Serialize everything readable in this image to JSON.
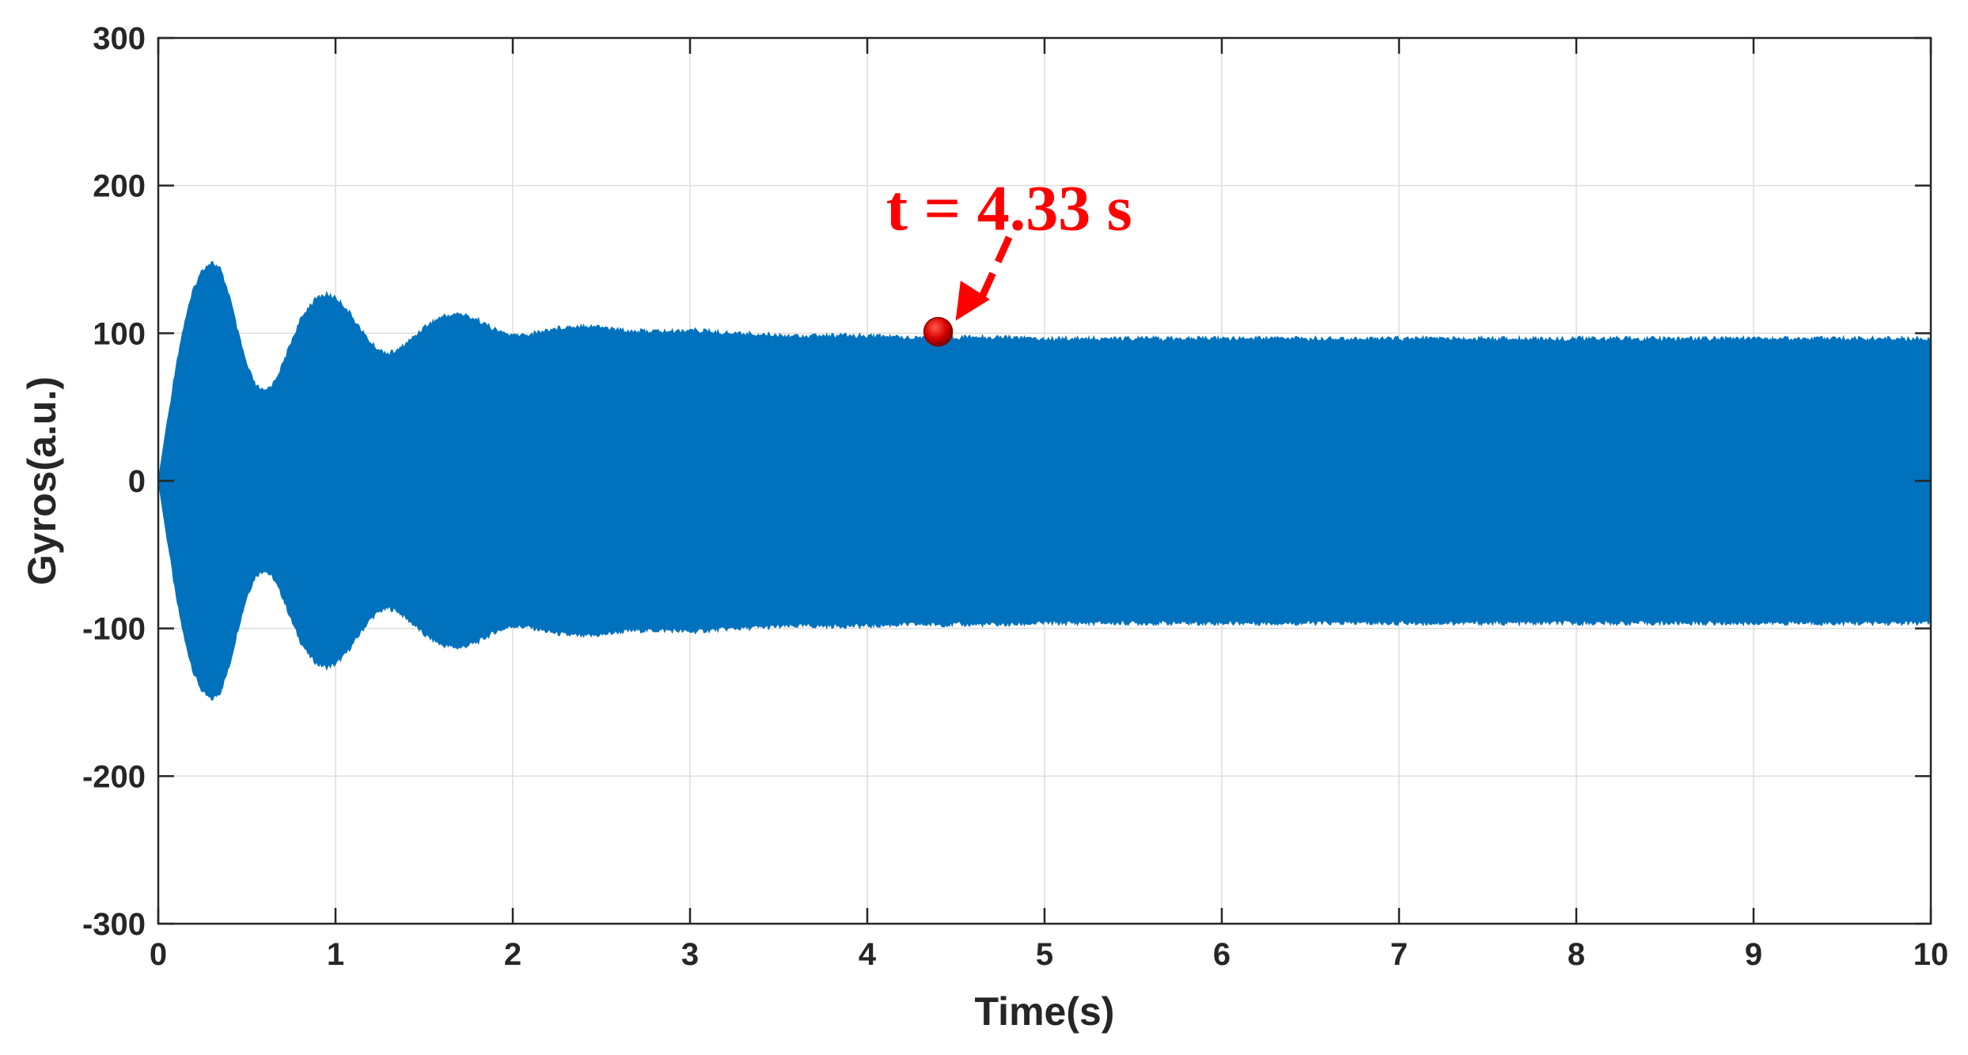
{
  "chart_data": {
    "type": "area",
    "title": "",
    "xlabel": "Time(s)",
    "ylabel": "Gyros(a.u.)",
    "xlim": [
      0,
      10
    ],
    "ylim": [
      -300,
      300
    ],
    "xticks": [
      0,
      1,
      2,
      3,
      4,
      5,
      6,
      7,
      8,
      9,
      10
    ],
    "yticks": [
      -300,
      -200,
      -100,
      0,
      100,
      200,
      300
    ],
    "grid": true,
    "legend": "none",
    "series_color": "#0072BD",
    "annotation_color": "#FF0000",
    "series": [
      {
        "envelope_description": "symmetric oscillation envelope (upper = +amplitude, lower = -amplitude)",
        "x": [
          0,
          0.05,
          0.1,
          0.15,
          0.2,
          0.25,
          0.3,
          0.35,
          0.4,
          0.45,
          0.5,
          0.55,
          0.6,
          0.65,
          0.7,
          0.75,
          0.8,
          0.85,
          0.9,
          0.95,
          1.0,
          1.05,
          1.1,
          1.15,
          1.2,
          1.25,
          1.3,
          1.35,
          1.4,
          1.45,
          1.5,
          1.6,
          1.7,
          1.8,
          1.9,
          2.0,
          2.1,
          2.2,
          2.3,
          2.4,
          2.5,
          2.6,
          2.7,
          2.8,
          2.9,
          3.0,
          3.1,
          3.2,
          3.4,
          3.6,
          3.8,
          4.0,
          4.2,
          4.4,
          4.6,
          4.8,
          5.0,
          5.5,
          6.0,
          6.5,
          7.0,
          7.5,
          8.0,
          8.5,
          9.0,
          9.5,
          10.0
        ],
        "amplitude": [
          0,
          40,
          80,
          110,
          132,
          145,
          150,
          145,
          128,
          102,
          80,
          66,
          62,
          68,
          80,
          96,
          110,
          120,
          126,
          128,
          126,
          120,
          112,
          103,
          95,
          90,
          88,
          90,
          95,
          100,
          106,
          113,
          115,
          111,
          104,
          100,
          101,
          104,
          106,
          107,
          106,
          104,
          103,
          103,
          103,
          104,
          103,
          102,
          101,
          100,
          100,
          100,
          99,
          99,
          99,
          99,
          98,
          98,
          98,
          98,
          98,
          98,
          98,
          98,
          98,
          98,
          98
        ]
      }
    ],
    "annotations": [
      {
        "text": "t = 4.33 s",
        "point_x": 4.4,
        "point_y": 101,
        "text_anchor_x": 4.8,
        "text_anchor_y": 185
      }
    ]
  }
}
